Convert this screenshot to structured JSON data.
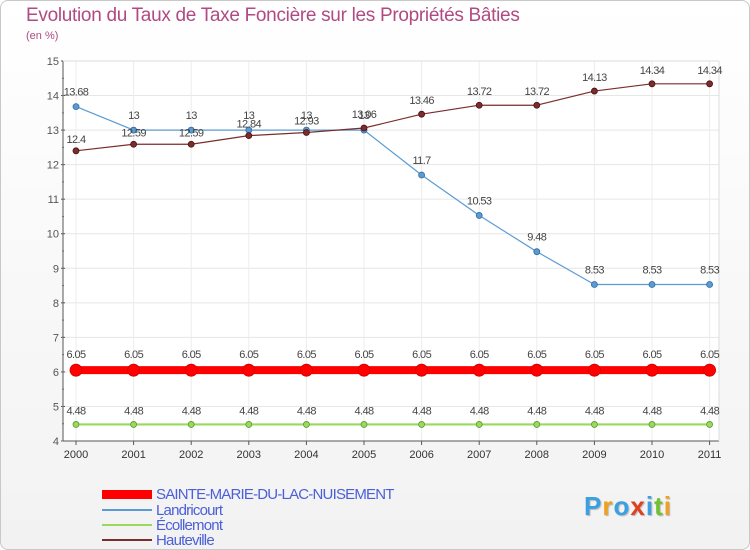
{
  "header": {
    "title": "Evolution du Taux de Taxe Foncière sur les Propriétés Bâties",
    "unit": "(en %)"
  },
  "chart_data": {
    "type": "line",
    "title": "Evolution du Taux de Taxe Foncière sur les Propriétés Bâties",
    "ylabel": "(en %)",
    "xlabel": "",
    "categories": [
      "2000",
      "2001",
      "2002",
      "2003",
      "2004",
      "2005",
      "2006",
      "2007",
      "2008",
      "2009",
      "2010",
      "2011"
    ],
    "ylim": [
      4,
      15
    ],
    "yticks": [
      "4",
      "5",
      "6",
      "7",
      "8",
      "9",
      "10",
      "11",
      "12",
      "13",
      "14",
      "15"
    ],
    "grid": true,
    "series": [
      {
        "name": "SAINTE-MARIE-DU-LAC-NUISEMENT",
        "color": "#ff0000",
        "values": [
          6.05,
          6.05,
          6.05,
          6.05,
          6.05,
          6.05,
          6.05,
          6.05,
          6.05,
          6.05,
          6.05,
          6.05
        ],
        "labels": [
          "6.05",
          "6.05",
          "6.05",
          "6.05",
          "6.05",
          "6.05",
          "6.05",
          "6.05",
          "6.05",
          "6.05",
          "6.05",
          "6.05"
        ]
      },
      {
        "name": "Landricourt",
        "color": "#5b9bd5",
        "values": [
          13.68,
          13,
          13,
          13,
          13,
          13,
          11.7,
          10.53,
          9.48,
          8.53,
          8.53,
          8.53
        ],
        "labels": [
          "13.68",
          "13",
          "13",
          "13",
          "13",
          "13",
          "11.7",
          "10.53",
          "9.48",
          "8.53",
          "8.53",
          "8.53"
        ]
      },
      {
        "name": "Écollemont",
        "color": "#9ad860",
        "values": [
          4.48,
          4.48,
          4.48,
          4.48,
          4.48,
          4.48,
          4.48,
          4.48,
          4.48,
          4.48,
          4.48,
          4.48
        ],
        "labels": [
          "4.48",
          "4.48",
          "4.48",
          "4.48",
          "4.48",
          "4.48",
          "4.48",
          "4.48",
          "4.48",
          "4.48",
          "4.48",
          "4.48"
        ]
      },
      {
        "name": "Hauteville",
        "color": "#7b2c2c",
        "values": [
          12.4,
          12.59,
          12.59,
          12.84,
          12.93,
          13.06,
          13.46,
          13.72,
          13.72,
          14.13,
          14.34,
          14.34
        ],
        "labels": [
          "12.4",
          "12.59",
          "12.59",
          "12.84",
          "12.93",
          "13.06",
          "13.46",
          "13.72",
          "13.72",
          "14.13",
          "14.34",
          "14.34"
        ]
      }
    ],
    "legend_position": "bottom-left"
  },
  "legend": {
    "items": [
      {
        "label": "SAINTE-MARIE-DU-LAC-NUISEMENT",
        "color": "#ff0000"
      },
      {
        "label": "Landricourt",
        "color": "#5b9bd5"
      },
      {
        "label": "Écollemont",
        "color": "#9ad860"
      },
      {
        "label": "Hauteville",
        "color": "#7b2c2c"
      }
    ]
  },
  "logo": {
    "text": "Proxiti",
    "letters": [
      "P",
      "r",
      "o",
      "x",
      "i",
      "t",
      "i"
    ],
    "colors": [
      "#3aa0e0",
      "#f0a020",
      "#3aa0e0",
      "#e04020",
      "#3aa0e0",
      "#70c030",
      "#f0a020"
    ]
  }
}
